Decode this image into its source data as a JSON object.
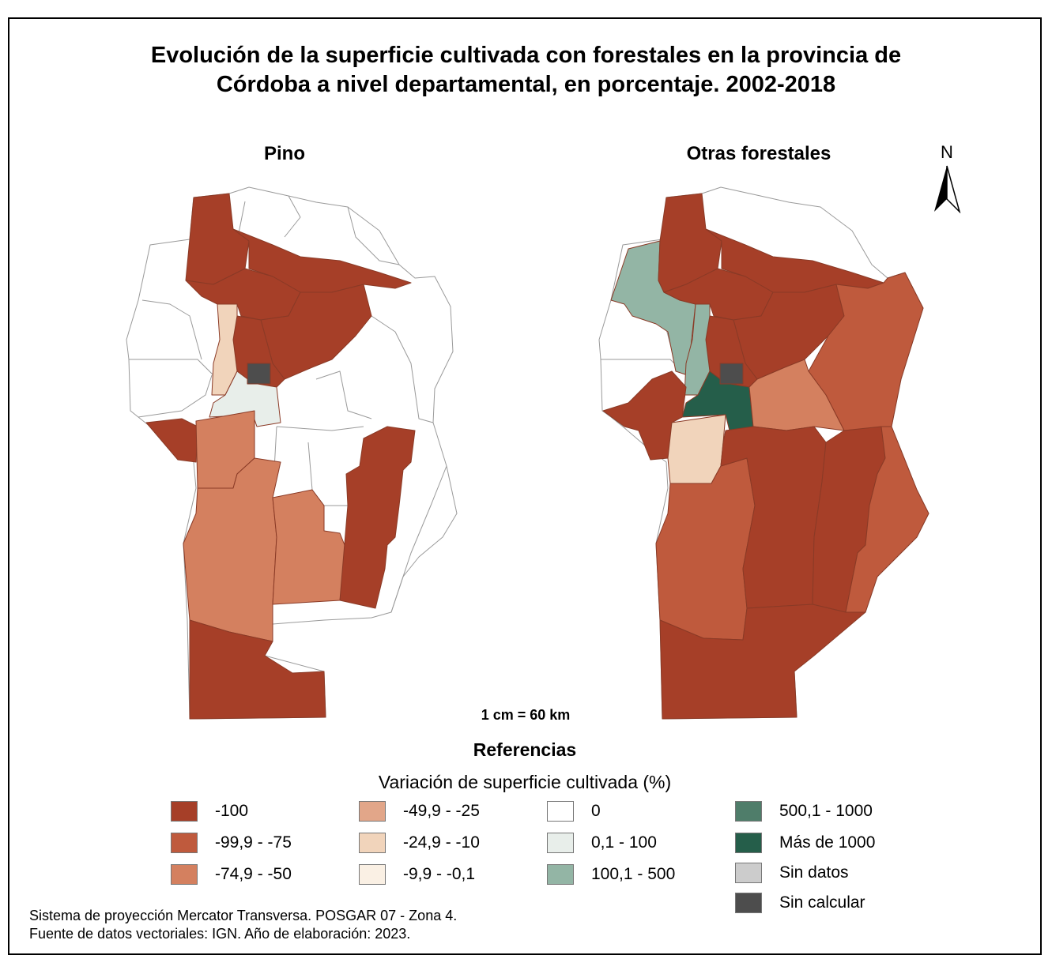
{
  "title": {
    "line1": "Evolución de la superficie cultivada con forestales en la provincia de",
    "line2": "Córdoba a nivel departamental, en porcentaje. 2002-2018"
  },
  "maps": {
    "left_title": "Pino",
    "right_title": "Otras forestales"
  },
  "north_arrow": {
    "letter": "N"
  },
  "scale": {
    "text": "1 cm = 60 km"
  },
  "legend": {
    "title": "Referencias",
    "subtitle": "Variación de superficie cultivada (%)",
    "items": [
      {
        "label": "-100",
        "color": "#a63f28"
      },
      {
        "label": "-99,9 - -75",
        "color": "#bf5a3d"
      },
      {
        "label": "-74,9 - -50",
        "color": "#d4805f"
      },
      {
        "label": "-49,9 - -25",
        "color": "#e2a689"
      },
      {
        "label": "-24,9 - -10",
        "color": "#f1d4bb"
      },
      {
        "label": "-9,9 - -0,1",
        "color": "#faf0e4"
      },
      {
        "label": "0",
        "color": "#ffffff"
      },
      {
        "label": "0,1 - 100",
        "color": "#e8eeea"
      },
      {
        "label": "100,1 - 500",
        "color": "#93b5a5"
      },
      {
        "label": "500,1 - 1000",
        "color": "#4f7d6a"
      },
      {
        "label": "Más de 1000",
        "color": "#255e4a"
      },
      {
        "label": "Sin datos",
        "color": "#cccccc"
      },
      {
        "label": "Sin calcular",
        "color": "#4d4d4d"
      }
    ]
  },
  "footer": {
    "line1": "Sistema de proyección Mercator Transversa. POSGAR 07 - Zona 4.",
    "line2": "Fuente de datos vectoriales: IGN. Año de elaboración: 2023."
  },
  "departments": {
    "pino": {
      "norte_a": "-100",
      "norte_b": "-100",
      "centro_norte": "-100",
      "noreste": "-100",
      "centro": "-100",
      "oeste_angosto": "-24,9 - -10",
      "capital": "Sin calcular",
      "centro_sur": "0,1 - 100",
      "suroeste_chico": "-100",
      "sur_centro": "-74,9 - -50",
      "sur_oeste": "-74,9 - -50",
      "sur_este_centro": "-74,9 - -50",
      "este_franja": "-100",
      "extremo_sur": "-100"
    },
    "otras": {
      "norte_a": "-100",
      "norte_b": "-100",
      "centro_norte": "-100",
      "noreste": "-100",
      "noroeste": "100,1 - 500",
      "oeste_angosto": "100,1 - 500",
      "capital": "Sin calcular",
      "centro": "Más de 1000",
      "este": "-99,9 - -75",
      "centro_este": "-74,9 - -50",
      "oeste_sur": "-100",
      "san_javier": "-24,9 - -10",
      "sur_oeste": "-99,9 - -75",
      "sur_centro": "-100",
      "sur_este_a": "-100",
      "sur_este_b": "-99,9 - -75",
      "extremo_sur": "-100"
    }
  }
}
